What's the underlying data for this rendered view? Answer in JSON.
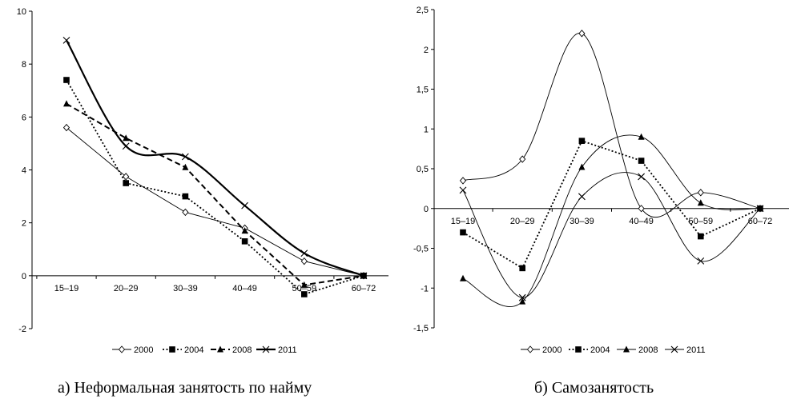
{
  "captions": {
    "left": "а) Неформальная занятость по найму",
    "right": "б) Самозанятость"
  },
  "chart_data": [
    {
      "type": "line",
      "title": "а) Неформальная занятость по найму",
      "categories": [
        "15–19",
        "20–29",
        "30–39",
        "40–49",
        "50–59",
        "60–72"
      ],
      "ylim": [
        -2,
        10
      ],
      "yticks": [
        -2,
        0,
        2,
        4,
        6,
        8,
        10
      ],
      "grid": false,
      "legend_position": "bottom",
      "series": [
        {
          "name": "2000",
          "values": [
            5.6,
            3.75,
            2.4,
            1.8,
            0.55,
            0.0
          ],
          "marker": "diamond-open",
          "line": "solid-thin",
          "smooth": false
        },
        {
          "name": "2004",
          "values": [
            7.4,
            3.5,
            3.0,
            1.3,
            -0.7,
            0.0
          ],
          "marker": "square",
          "line": "dotted",
          "smooth": false
        },
        {
          "name": "2008",
          "values": [
            6.5,
            5.2,
            4.1,
            1.7,
            -0.35,
            0.0
          ],
          "marker": "triangle",
          "line": "dashed",
          "smooth": false
        },
        {
          "name": "2011",
          "values": [
            8.9,
            4.9,
            4.5,
            2.65,
            0.85,
            0.0
          ],
          "marker": "x",
          "line": "solid-thick",
          "smooth": true
        }
      ]
    },
    {
      "type": "line",
      "title": "б) Самозанятость",
      "categories": [
        "15–19",
        "20–29",
        "30–39",
        "40–49",
        "50–59",
        "60–72"
      ],
      "ylim": [
        -1.5,
        2.5
      ],
      "yticks": [
        -1.5,
        -1,
        -0.5,
        0,
        0.5,
        1,
        1.5,
        2,
        2.5
      ],
      "grid": false,
      "legend_position": "bottom",
      "series": [
        {
          "name": "2000",
          "values": [
            0.35,
            0.62,
            2.2,
            0.0,
            0.2,
            0.0
          ],
          "marker": "diamond-open",
          "line": "solid-thin",
          "smooth": true
        },
        {
          "name": "2004",
          "values": [
            -0.3,
            -0.75,
            0.85,
            0.6,
            -0.35,
            0.0
          ],
          "marker": "square",
          "line": "dotted",
          "smooth": false
        },
        {
          "name": "2008",
          "values": [
            -0.88,
            -1.17,
            0.52,
            0.9,
            0.07,
            0.0
          ],
          "marker": "triangle",
          "line": "solid-thin",
          "smooth": true
        },
        {
          "name": "2011",
          "values": [
            0.23,
            -1.12,
            0.15,
            0.4,
            -0.66,
            0.0
          ],
          "marker": "x",
          "line": "solid-thin",
          "smooth": true
        }
      ]
    }
  ]
}
